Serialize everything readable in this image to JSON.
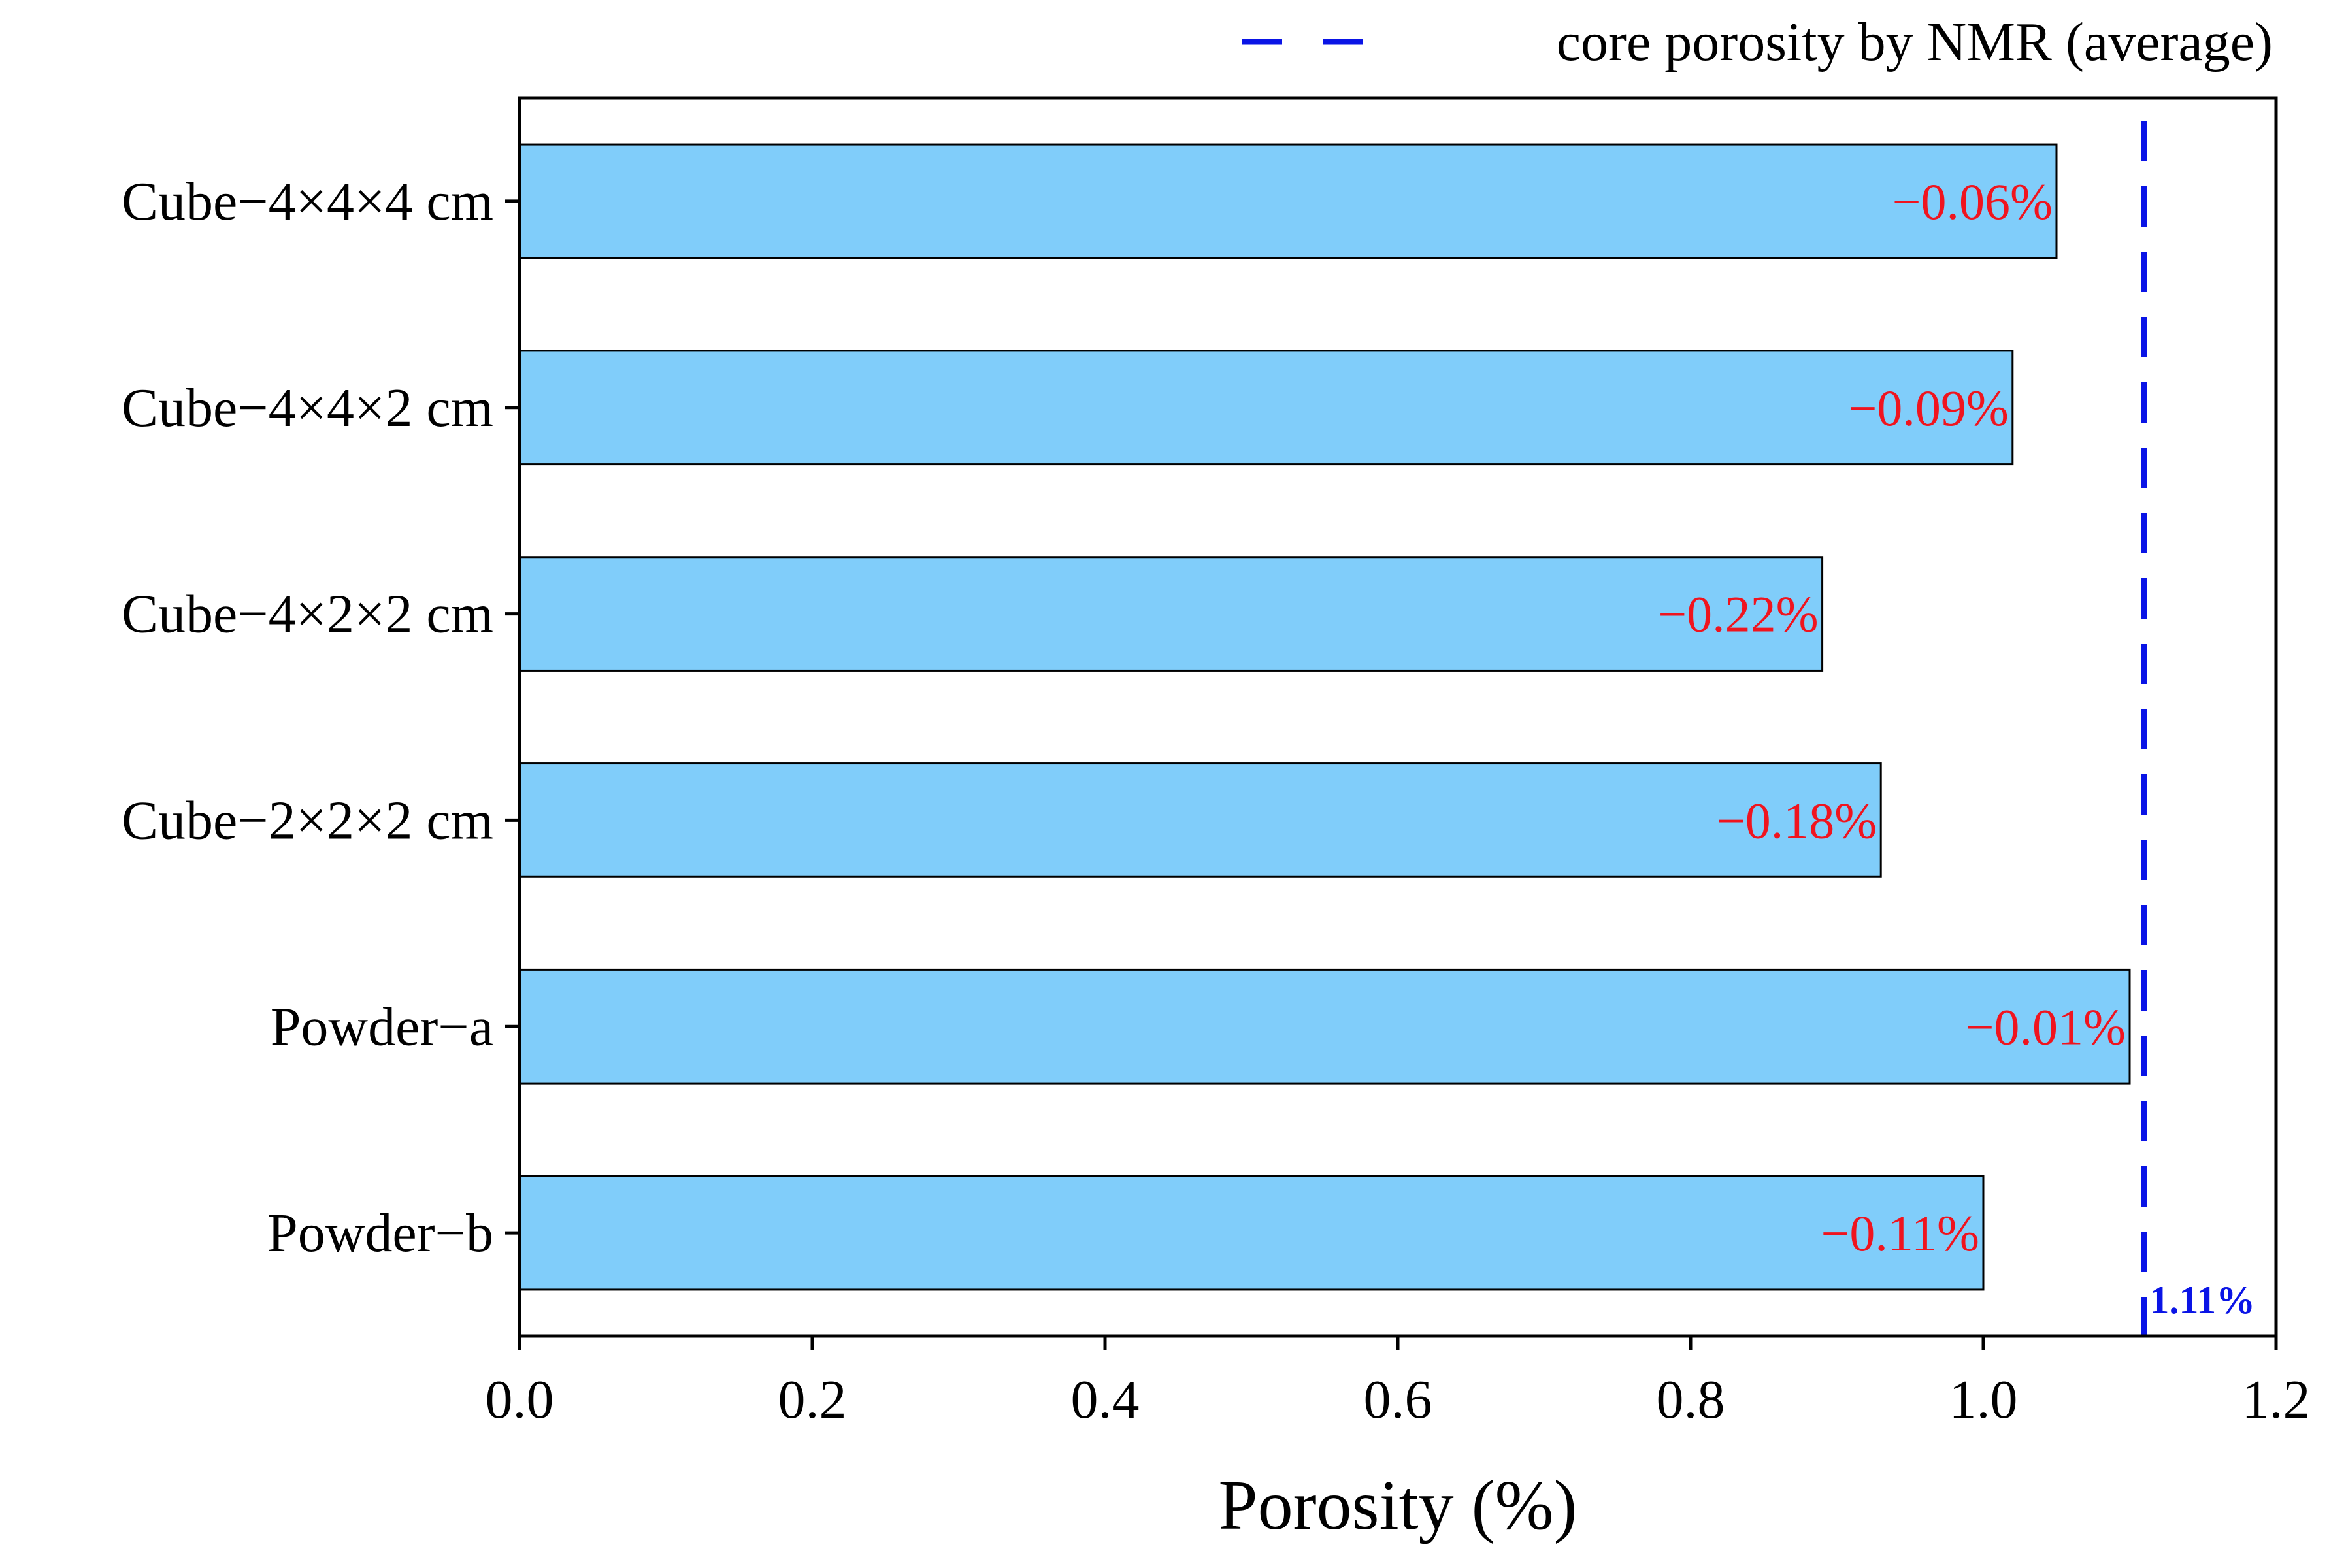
{
  "chart_data": {
    "type": "bar",
    "orientation": "horizontal",
    "categories": [
      "Cube−4×4×4 cm",
      "Cube−4×4×2 cm",
      "Cube−4×2×2 cm",
      "Cube−2×2×2 cm",
      "Powder−a",
      "Powder−b"
    ],
    "values": [
      1.05,
      1.02,
      0.89,
      0.93,
      1.1,
      1.0
    ],
    "bar_labels": [
      "−0.06%",
      "−0.09%",
      "−0.22%",
      "−0.18%",
      "−0.01%",
      "−0.11%"
    ],
    "xlabel": "Porosity (%)",
    "ylabel": "",
    "xlim": [
      0.0,
      1.2
    ],
    "xticks": [
      0.0,
      0.2,
      0.4,
      0.6,
      0.8,
      1.0,
      1.2
    ],
    "xtick_labels": [
      "0.0",
      "0.2",
      "0.4",
      "0.6",
      "0.8",
      "1.0",
      "1.2"
    ],
    "reference_line": {
      "value": 1.11,
      "label": "1.11%",
      "legend": "core porosity by NMR (average)",
      "style": "dashed",
      "color": "#0a14e6"
    },
    "legend_position": "top-right",
    "grid": false,
    "bar_color": "#80cdfa",
    "bar_label_color": "#f0141e"
  }
}
